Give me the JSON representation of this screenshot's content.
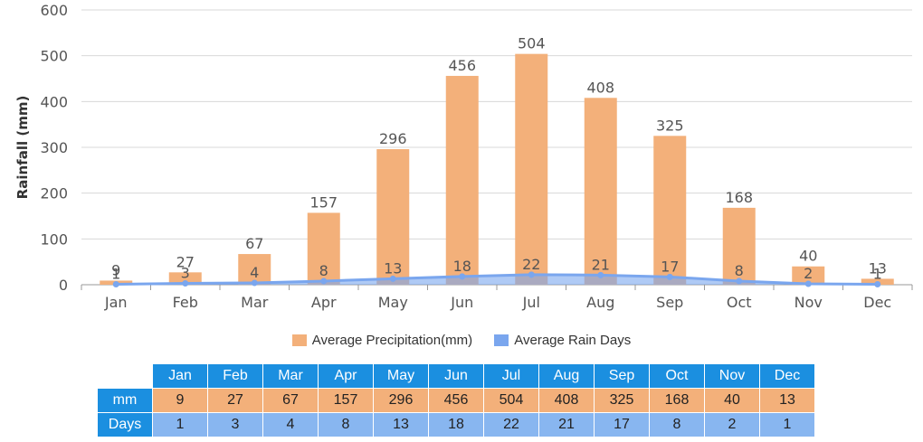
{
  "chart_data": {
    "type": "bar",
    "categories": [
      "Jan",
      "Feb",
      "Mar",
      "Apr",
      "May",
      "Jun",
      "Jul",
      "Aug",
      "Sep",
      "Oct",
      "Nov",
      "Dec"
    ],
    "series": [
      {
        "name": "Average Precipitation(mm)",
        "type": "bar",
        "values": [
          9,
          27,
          67,
          157,
          296,
          456,
          504,
          408,
          325,
          168,
          40,
          13
        ],
        "color": "#f3b07a"
      },
      {
        "name": "Average Rain Days",
        "type": "area",
        "values": [
          1,
          3,
          4,
          8,
          13,
          18,
          22,
          21,
          17,
          8,
          2,
          1
        ],
        "color": "#7aa6ee"
      }
    ],
    "ylabel": "Rainfall (mm)",
    "xlabel": "",
    "ylim": [
      0,
      600
    ],
    "yticks": [
      0,
      100,
      200,
      300,
      400,
      500,
      600
    ],
    "grid": true,
    "legend": "bottom"
  },
  "table": {
    "row_labels": {
      "mm": "mm",
      "days": "Days"
    }
  }
}
